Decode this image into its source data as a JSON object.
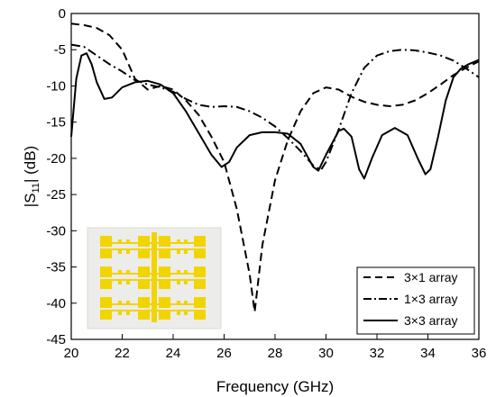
{
  "chart_data": {
    "type": "line",
    "title": "",
    "xlabel": "Frequency (GHz)",
    "ylabel_main": "|S",
    "ylabel_sub": "11",
    "ylabel_tail": "| (dB)",
    "xlim": [
      20,
      36
    ],
    "ylim": [
      -45,
      0
    ],
    "xticks": [
      20,
      22,
      24,
      26,
      28,
      30,
      32,
      34,
      36
    ],
    "yticks": [
      0,
      -5,
      -10,
      -15,
      -20,
      -25,
      -30,
      -35,
      -40,
      -45
    ],
    "grid": false,
    "legend_position": "bottom-right",
    "series": [
      {
        "name": "3×1 array",
        "dash": "dashed",
        "points": [
          [
            20,
            -1.4
          ],
          [
            20.5,
            -1.6
          ],
          [
            21,
            -2.0
          ],
          [
            21.5,
            -3.0
          ],
          [
            22,
            -5.0
          ],
          [
            22.5,
            -9.0
          ],
          [
            23,
            -10.5
          ],
          [
            23.5,
            -10.0
          ],
          [
            24,
            -10.5
          ],
          [
            24.5,
            -12.0
          ],
          [
            25,
            -14.0
          ],
          [
            25.5,
            -17.0
          ],
          [
            26,
            -20.5
          ],
          [
            26.5,
            -27.0
          ],
          [
            27,
            -36.0
          ],
          [
            27.2,
            -41.2
          ],
          [
            27.5,
            -32.0
          ],
          [
            28,
            -23.0
          ],
          [
            28.5,
            -17.5
          ],
          [
            29,
            -13.5
          ],
          [
            29.5,
            -11.0
          ],
          [
            30,
            -10.2
          ],
          [
            30.5,
            -10.5
          ],
          [
            31,
            -11.5
          ],
          [
            31.5,
            -12.2
          ],
          [
            32,
            -12.6
          ],
          [
            32.5,
            -12.8
          ],
          [
            33,
            -12.6
          ],
          [
            33.5,
            -12.0
          ],
          [
            34,
            -11.0
          ],
          [
            34.5,
            -9.8
          ],
          [
            35,
            -8.5
          ],
          [
            35.5,
            -7.5
          ],
          [
            36,
            -6.6
          ]
        ]
      },
      {
        "name": "1×3 array",
        "dash": "dashdot",
        "points": [
          [
            20,
            -4.3
          ],
          [
            20.5,
            -4.6
          ],
          [
            21,
            -5.8
          ],
          [
            21.5,
            -7.0
          ],
          [
            22,
            -8.0
          ],
          [
            22.5,
            -9.2
          ],
          [
            23,
            -9.8
          ],
          [
            23.5,
            -10.2
          ],
          [
            24,
            -10.8
          ],
          [
            24.5,
            -11.8
          ],
          [
            25,
            -12.6
          ],
          [
            25.5,
            -12.9
          ],
          [
            26,
            -12.8
          ],
          [
            26.5,
            -12.9
          ],
          [
            27,
            -13.5
          ],
          [
            27.5,
            -14.4
          ],
          [
            28,
            -15.6
          ],
          [
            28.5,
            -17.2
          ],
          [
            29,
            -19.0
          ],
          [
            29.5,
            -21.0
          ],
          [
            29.8,
            -21.6
          ],
          [
            30,
            -20.5
          ],
          [
            30.5,
            -16.0
          ],
          [
            31,
            -11.0
          ],
          [
            31.5,
            -7.5
          ],
          [
            32,
            -5.8
          ],
          [
            32.5,
            -5.2
          ],
          [
            33,
            -5.0
          ],
          [
            33.5,
            -5.1
          ],
          [
            34,
            -5.4
          ],
          [
            34.5,
            -5.8
          ],
          [
            35,
            -6.5
          ],
          [
            35.5,
            -7.6
          ],
          [
            36,
            -8.8
          ]
        ]
      },
      {
        "name": "3×3 array",
        "dash": "solid",
        "points": [
          [
            20,
            -17.0
          ],
          [
            20.2,
            -9.0
          ],
          [
            20.4,
            -5.8
          ],
          [
            20.6,
            -5.5
          ],
          [
            20.8,
            -7.0
          ],
          [
            21,
            -9.5
          ],
          [
            21.3,
            -11.8
          ],
          [
            21.6,
            -11.6
          ],
          [
            22,
            -10.2
          ],
          [
            22.5,
            -9.5
          ],
          [
            23,
            -9.3
          ],
          [
            23.5,
            -9.8
          ],
          [
            24,
            -11.0
          ],
          [
            24.5,
            -13.5
          ],
          [
            25,
            -16.5
          ],
          [
            25.5,
            -19.5
          ],
          [
            25.9,
            -21.2
          ],
          [
            26.2,
            -20.5
          ],
          [
            26.5,
            -18.5
          ],
          [
            27,
            -16.8
          ],
          [
            27.5,
            -16.4
          ],
          [
            28,
            -16.4
          ],
          [
            28.5,
            -16.6
          ],
          [
            29,
            -18.0
          ],
          [
            29.5,
            -21.2
          ],
          [
            29.7,
            -21.7
          ],
          [
            30,
            -19.5
          ],
          [
            30.5,
            -16.2
          ],
          [
            30.7,
            -15.9
          ],
          [
            31,
            -17.0
          ],
          [
            31.3,
            -21.5
          ],
          [
            31.5,
            -22.8
          ],
          [
            31.8,
            -20.0
          ],
          [
            32.2,
            -16.8
          ],
          [
            32.7,
            -15.8
          ],
          [
            33.2,
            -16.8
          ],
          [
            33.6,
            -20.0
          ],
          [
            33.9,
            -22.2
          ],
          [
            34.1,
            -21.5
          ],
          [
            34.4,
            -17.0
          ],
          [
            34.7,
            -12.0
          ],
          [
            35,
            -8.8
          ],
          [
            35.3,
            -7.6
          ],
          [
            35.6,
            -7.0
          ],
          [
            36,
            -6.4
          ]
        ]
      }
    ]
  }
}
